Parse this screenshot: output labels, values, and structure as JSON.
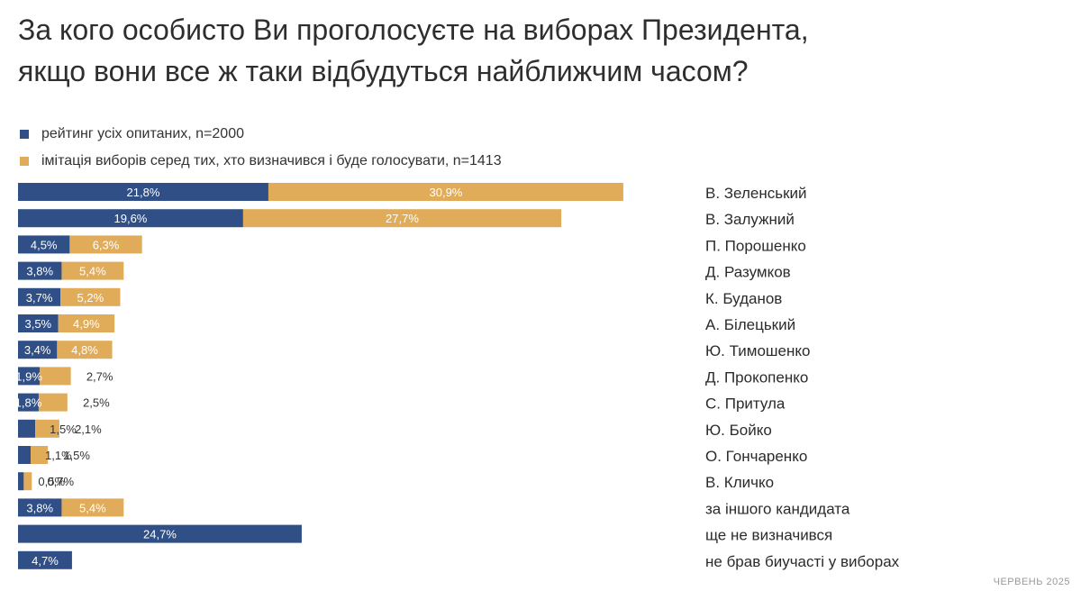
{
  "title_lines": [
    "За кого особисто Ви проголосуєте на виборах Президента,",
    "якщо вони все ж таки відбудуться найближчим часом?"
  ],
  "colors": {
    "blue": "#2f4f86",
    "gold": "#e0ac5a"
  },
  "footer": "ЧЕРВЕНЬ 2025",
  "chart_data": {
    "type": "bar",
    "orientation": "horizontal",
    "stacked_side_by_side": true,
    "legend_placement": "top-left",
    "grid": false,
    "series": [
      {
        "name": "рейтинг усіх опитаних, n=2000",
        "color": "#2f4f86",
        "values": [
          21.8,
          19.6,
          4.5,
          3.8,
          3.7,
          3.5,
          3.4,
          1.9,
          1.8,
          1.5,
          1.1,
          0.5,
          3.8,
          24.7,
          4.7
        ],
        "labels": [
          "21,8%",
          "19,6%",
          "4,5%",
          "3,8%",
          "3,7%",
          "3,5%",
          "3,4%",
          "1,9%",
          "1,8%",
          "1,5%",
          "1,1%",
          "0,5%",
          "3,8%",
          "24,7%",
          "4,7%"
        ]
      },
      {
        "name": "імітація виборів серед тих, хто визначився і буде голосувати, n=1413",
        "color": "#e0ac5a",
        "values": [
          30.9,
          27.7,
          6.3,
          5.4,
          5.2,
          4.9,
          4.8,
          2.7,
          2.5,
          2.1,
          1.5,
          0.7,
          5.4,
          null,
          null
        ],
        "labels": [
          "30,9%",
          "27,7%",
          "6,3%",
          "5,4%",
          "5,2%",
          "4,9%",
          "4,8%",
          "2,7%",
          "2,5%",
          "2,1%",
          "1,5%",
          "0,7%",
          "5,4%",
          null,
          null
        ]
      }
    ],
    "categories": [
      "В. Зеленський",
      "В. Залужний",
      "П. Порошенко",
      "Д. Разумков",
      "К. Буданов",
      "А. Білецький",
      "Ю. Тимошенко",
      "Д. Прокопенко",
      "С. Притула",
      "Ю. Бойко",
      "О. Гончаренко",
      "В. Кличко",
      "за іншого кандидата",
      "ще не визначився",
      "не брав биучасті у виборах"
    ]
  }
}
